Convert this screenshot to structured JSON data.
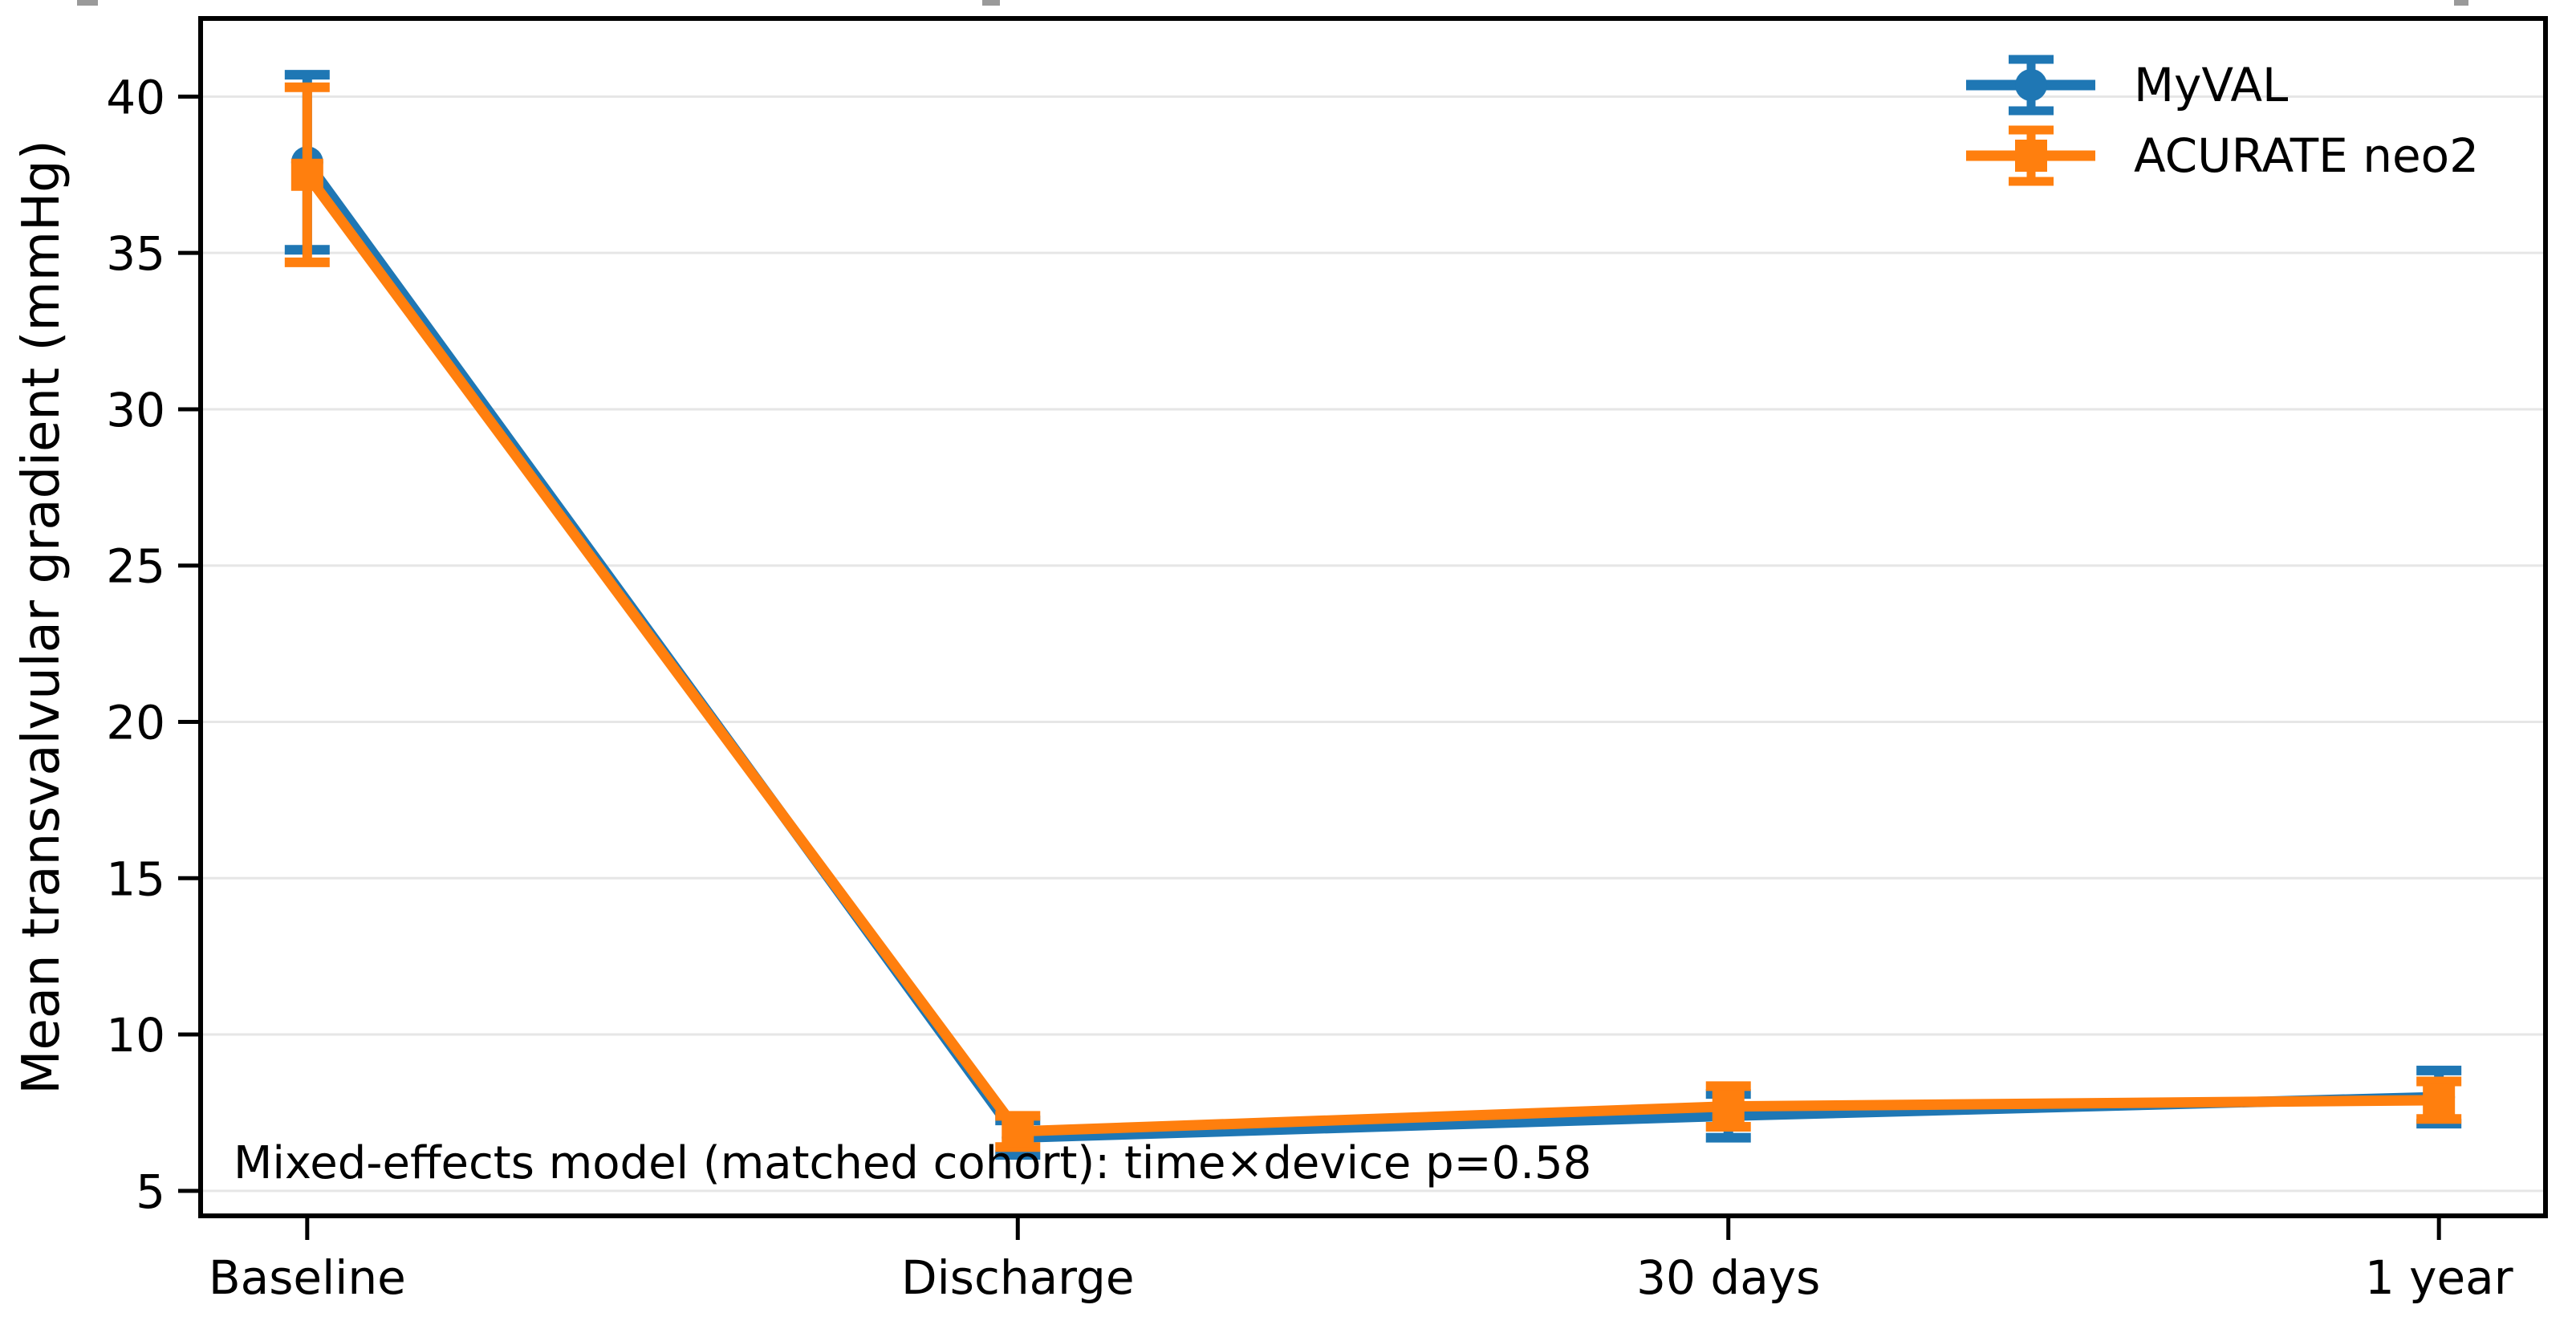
{
  "chart_data": {
    "type": "line",
    "title": "",
    "xlabel": "",
    "ylabel": "Mean transvalvular gradient (mmHg)",
    "categories": [
      "Baseline",
      "Discharge",
      "30 days",
      "1 year"
    ],
    "yticks": [
      5,
      10,
      15,
      20,
      25,
      30,
      35,
      40
    ],
    "ylim": [
      4.2,
      42.5
    ],
    "grid": "horizontal",
    "legend_position": "upper right",
    "annotation": "Mixed-effects model (matched cohort): time×device p=0.58",
    "series": [
      {
        "name": "MyVAL",
        "color": "#1f77b4",
        "marker": "circle",
        "values": [
          37.9,
          6.7,
          7.4,
          8.0
        ],
        "errors": [
          2.8,
          0.55,
          0.7,
          0.85
        ]
      },
      {
        "name": "ACURATE neo2",
        "color": "#ff7f0e",
        "marker": "square",
        "values": [
          37.5,
          6.9,
          7.7,
          7.9
        ],
        "errors": [
          2.8,
          0.5,
          0.65,
          0.6
        ]
      }
    ]
  },
  "colors": {
    "grid": "#e6e6e6",
    "spine": "#000000",
    "text": "#000000",
    "background": "#ffffff"
  }
}
